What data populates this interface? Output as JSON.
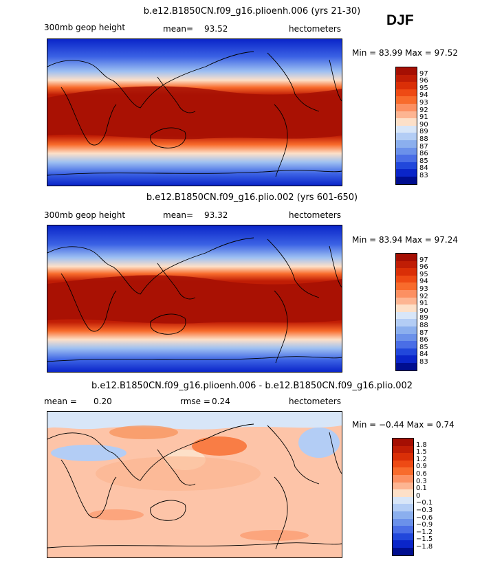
{
  "season_label": "DJF",
  "panels": [
    {
      "title": "b.e12.B1850CN.f09_g16.plioenh.006 (yrs 21-30)",
      "left_label": "300mb geop height",
      "center_label": "mean=",
      "center_value": "93.52",
      "units": "hectometers",
      "minmax_text": "Min =  83.99  Max =  97.52",
      "colorbar": {
        "labels": [
          "97",
          "96",
          "95",
          "94",
          "93",
          "92",
          "91",
          "90",
          "89",
          "88",
          "87",
          "86",
          "85",
          "84",
          "83"
        ],
        "colors": [
          "#a50f03",
          "#c01d05",
          "#da2f07",
          "#ee4a14",
          "#f86b2c",
          "#fc9062",
          "#fdb592",
          "#fde0c8",
          "#d8e6f8",
          "#b3cdf5",
          "#8bafee",
          "#6b91ea",
          "#4a6ee6",
          "#2147db",
          "#0a25c9",
          "#000e8f"
        ]
      }
    },
    {
      "title": "b.e12.B1850CN.f09_g16.plio.002 (yrs 601-650)",
      "left_label": "300mb geop height",
      "center_label": "mean=",
      "center_value": "93.32",
      "units": "hectometers",
      "minmax_text": "Min =  83.94  Max =  97.24",
      "colorbar": {
        "labels": [
          "97",
          "96",
          "95",
          "94",
          "93",
          "92",
          "91",
          "90",
          "89",
          "88",
          "87",
          "86",
          "85",
          "84",
          "83"
        ],
        "colors": [
          "#a50f03",
          "#c01d05",
          "#da2f07",
          "#ee4a14",
          "#f86b2c",
          "#fc9062",
          "#fdb592",
          "#fde0c8",
          "#d8e6f8",
          "#b3cdf5",
          "#8bafee",
          "#6b91ea",
          "#4a6ee6",
          "#2147db",
          "#0a25c9",
          "#000e8f"
        ]
      }
    },
    {
      "title": "b.e12.B1850CN.f09_g16.plioenh.006 - b.e12.B1850CN.f09_g16.plio.002",
      "left_label": "mean =",
      "left_value": "0.20",
      "center_label": "rmse =",
      "center_value": "0.24",
      "units": "hectometers",
      "minmax_text": "Min =  −0.44  Max =   0.74",
      "colorbar": {
        "labels": [
          "1.8",
          "1.5",
          "1.2",
          "0.9",
          "0.6",
          "0.3",
          "0.1",
          "0",
          "−0.1",
          "−0.3",
          "−0.6",
          "−0.9",
          "−1.2",
          "−1.5",
          "−1.8"
        ],
        "colors": [
          "#a50f03",
          "#c01d05",
          "#da2f07",
          "#ee4a14",
          "#f86b2c",
          "#fc9062",
          "#fdb592",
          "#fde0c8",
          "#d8e6f8",
          "#b3cdf5",
          "#8bafee",
          "#6b91ea",
          "#4a6ee6",
          "#2147db",
          "#0a25c9",
          "#000e8f"
        ]
      }
    }
  ]
}
